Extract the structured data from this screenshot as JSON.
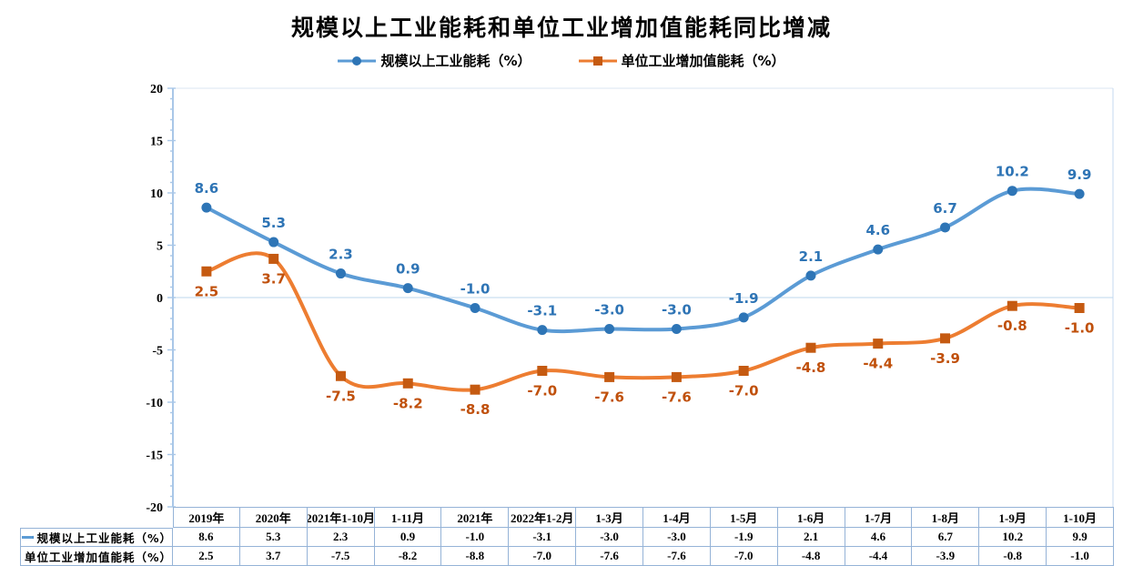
{
  "title": "规模以上工业能耗和单位工业增加值能耗同比增减",
  "chart_data": {
    "type": "line",
    "title": "规模以上工业能耗和单位工业增加值能耗同比增减",
    "categories": [
      "2019年",
      "2020年",
      "2021年1-10月",
      "1-11月",
      "2021年",
      "2022年1-2月",
      "1-3月",
      "1-4月",
      "1-5月",
      "1-6月",
      "1-7月",
      "1-8月",
      "1-9月",
      "1-10月"
    ],
    "series": [
      {
        "name": "规模以上工业能耗（%）",
        "values": [
          8.6,
          5.3,
          2.3,
          0.9,
          -1.0,
          -3.1,
          -3.0,
          -3.0,
          -1.9,
          2.1,
          4.6,
          6.7,
          10.2,
          9.9
        ],
        "marker": "circle",
        "line_color": "#5b9bd5",
        "marker_color": "#2e75b6",
        "label_color": "#2e74b5",
        "label_position": "above"
      },
      {
        "name": "单位工业增加值能耗（%）",
        "values": [
          2.5,
          3.7,
          -7.5,
          -8.2,
          -8.8,
          -7.0,
          -7.6,
          -7.6,
          -7.0,
          -4.8,
          -4.4,
          -3.9,
          -0.8,
          -1.0
        ],
        "marker": "square",
        "line_color": "#ed7d31",
        "marker_color": "#c55a11",
        "label_color": "#c0500b",
        "label_position": "below"
      }
    ],
    "ylim": [
      -20,
      20
    ],
    "ytick_step": 5,
    "yticks": [
      20,
      15,
      10,
      5,
      0,
      -5,
      -10,
      -15,
      -20
    ],
    "xlabel": "",
    "ylabel": "",
    "grid": "zero gridline only",
    "legend_position": "top",
    "smoothed_lines": true,
    "data_table_below_chart": true
  },
  "colors": {
    "axis_line": "#a9c7e8",
    "zero_gridline": "#bdd7ee",
    "plot_right_border": "#c5d9f1",
    "plot_top_border": "#dbe5f1",
    "table_border": "#95b3d7",
    "title_text": "#000000",
    "table_text": "#000000"
  }
}
